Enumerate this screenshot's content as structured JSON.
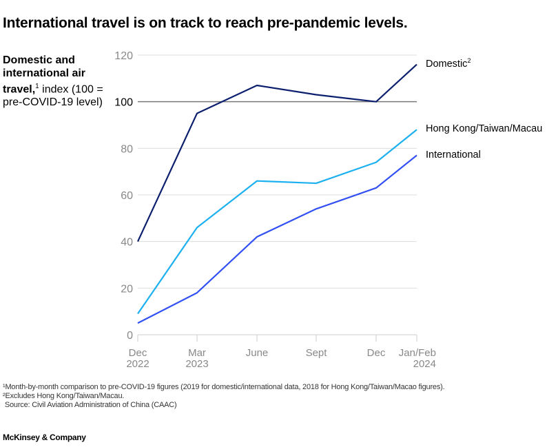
{
  "title": "International travel is on track to reach pre-pandemic levels.",
  "ylabel": {
    "bold": "Domestic and international air travel,",
    "sup": "1",
    "rest": " index (100 = pre-COVID-19 level)"
  },
  "chart_data": {
    "type": "line",
    "categories": [
      [
        "Dec",
        "2022"
      ],
      [
        "Mar",
        "2023"
      ],
      [
        "June",
        ""
      ],
      [
        "Sept",
        ""
      ],
      [
        "Dec",
        ""
      ],
      [
        "Jan/Feb",
        "2024"
      ]
    ],
    "ylim": [
      0,
      120
    ],
    "yticks": [
      0,
      20,
      40,
      60,
      80,
      100,
      120
    ],
    "reference_line": 100,
    "grid": true,
    "series": [
      {
        "name": "Domestic",
        "sup": "2",
        "color": "#0c1f6e",
        "values": [
          40,
          95,
          107,
          103,
          100,
          116
        ]
      },
      {
        "name": "Hong Kong/Taiwan/Macau",
        "sup": "",
        "color": "#1bb0ef",
        "values": [
          9,
          46,
          66,
          65,
          74,
          88
        ]
      },
      {
        "name": "International",
        "sup": "",
        "color": "#3250f4",
        "values": [
          5,
          18,
          42,
          54,
          63,
          77
        ]
      }
    ]
  },
  "footnotes": [
    "¹Month-by-month comparison to pre-COVID-19 figures (2019 for domestic/international data, 2018 for Hong Kong/Taiwan/Macao figures).",
    "²Excludes Hong Kong/Taiwan/Macau.",
    " Source: Civil Aviation Administration of China (CAAC)"
  ],
  "brand": "McKinsey & Company"
}
